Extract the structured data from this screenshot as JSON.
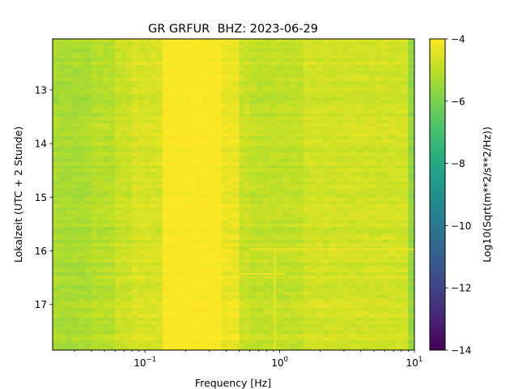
{
  "chart_data": {
    "type": "heatmap",
    "title": "GR GRFUR  BHZ: 2023-06-29",
    "xlabel": "Frequency [Hz]",
    "ylabel": "Lokalzeit (UTC + 2 Stunde)",
    "x_scale": "log",
    "xlim": [
      0.0206,
      10
    ],
    "ylim": [
      17.85,
      12.05
    ],
    "y_inverted": true,
    "x_ticks": [
      {
        "value": 0.1,
        "base": "10",
        "exp": "−1"
      },
      {
        "value": 1,
        "base": "10",
        "exp": "0"
      },
      {
        "value": 10,
        "base": "10",
        "exp": "1"
      }
    ],
    "y_ticks": [
      {
        "value": 13,
        "label": "13"
      },
      {
        "value": 14,
        "label": "14"
      },
      {
        "value": 15,
        "label": "15"
      },
      {
        "value": 16,
        "label": "16"
      },
      {
        "value": 17,
        "label": "17"
      }
    ],
    "colorbar": {
      "label": "Log10(Sqrt(m**2/s**2/Hz))",
      "vmin": -14,
      "vmax": -4,
      "colormap": "viridis",
      "ticks": [
        {
          "value": -4,
          "label": "−4"
        },
        {
          "value": -6,
          "label": "−6"
        },
        {
          "value": -8,
          "label": "−8"
        },
        {
          "value": -10,
          "label": "−10"
        },
        {
          "value": -12,
          "label": "−12"
        },
        {
          "value": -14,
          "label": "−14"
        }
      ]
    },
    "frequency_bands_hz": [
      {
        "f_min": 0.0206,
        "f_max": 0.04,
        "level": -5.3
      },
      {
        "f_min": 0.04,
        "f_max": 0.06,
        "level": -5.1
      },
      {
        "f_min": 0.06,
        "f_max": 0.08,
        "level": -4.8
      },
      {
        "f_min": 0.08,
        "f_max": 0.135,
        "level": -4.6
      },
      {
        "f_min": 0.135,
        "f_max": 0.37,
        "level": -4.05
      },
      {
        "f_min": 0.37,
        "f_max": 0.5,
        "level": -4.3
      },
      {
        "f_min": 0.5,
        "f_max": 0.6,
        "level": -4.8
      },
      {
        "f_min": 0.6,
        "f_max": 1.5,
        "level": -4.95
      },
      {
        "f_min": 1.5,
        "f_max": 9,
        "level": -4.7
      },
      {
        "f_min": 9,
        "f_max": 10,
        "level": -5.6
      }
    ],
    "time_hours": [
      12.05,
      17.85
    ],
    "features": [
      {
        "type": "horizontal_line",
        "time": 15.97,
        "f_min": 0.6,
        "f_max": 10,
        "level": -4.2
      },
      {
        "type": "horizontal_line",
        "time": 16.43,
        "f_min": 0.5,
        "f_max": 1.1,
        "level": -4.2
      },
      {
        "type": "vertical_line",
        "freq": 0.92,
        "t_min": 16.0,
        "t_max": 17.85,
        "level": -4.5
      }
    ]
  }
}
